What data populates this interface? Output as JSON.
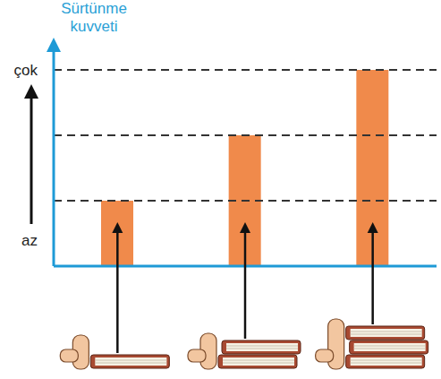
{
  "chart_data": {
    "type": "bar",
    "y_label": "Sürtünme kuvveti",
    "categories": [
      null,
      null,
      null
    ],
    "values": [
      1,
      2,
      3
    ],
    "color": "#f08a4b",
    "ylim": [
      0,
      3.3
    ],
    "yticks": [
      {
        "value": 0.4,
        "label": "az"
      },
      {
        "value": 3,
        "label": "çok"
      }
    ],
    "tick_labels": "y"
  }
}
